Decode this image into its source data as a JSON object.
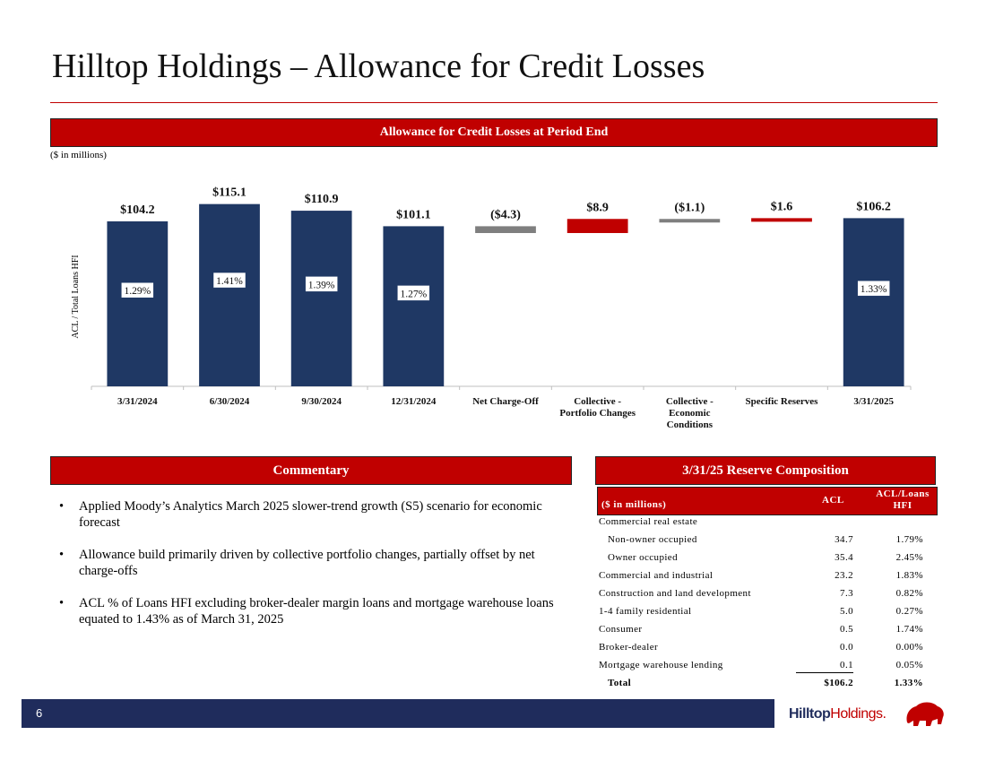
{
  "page": {
    "title": "Hilltop Holdings – Allowance for Credit Losses",
    "page_number": "6"
  },
  "chart_section": {
    "header": "Allowance for Credit Losses at Period End",
    "units_note": "($ in millions)"
  },
  "chart_data": {
    "type": "bar",
    "subtype": "waterfall",
    "ylabel": "ACL / Total Loans HFI",
    "categories": [
      "3/31/2024",
      "6/30/2024",
      "9/30/2024",
      "12/31/2024",
      "Net Charge-Off",
      "Collective - Portfolio Changes",
      "Collective - Economic Conditions",
      "Specific Reserves",
      "3/31/2025"
    ],
    "category_lines": [
      [
        "3/31/2024"
      ],
      [
        "6/30/2024"
      ],
      [
        "9/30/2024"
      ],
      [
        "12/31/2024"
      ],
      [
        "Net Charge-Off"
      ],
      [
        "Collective -",
        "Portfolio Changes"
      ],
      [
        "Collective -",
        "Economic",
        "Conditions"
      ],
      [
        "Specific Reserves"
      ],
      [
        "3/31/2025"
      ]
    ],
    "values": [
      104.2,
      115.1,
      110.9,
      101.1,
      -4.3,
      8.9,
      -1.1,
      1.6,
      106.2
    ],
    "value_labels": [
      "$104.2",
      "$115.1",
      "$110.9",
      "$101.1",
      "($4.3)",
      "$8.9",
      "($1.1)",
      "$1.6",
      "$106.2"
    ],
    "kinds": [
      "total",
      "total",
      "total",
      "total",
      "decrease",
      "increase",
      "decrease",
      "increase",
      "total"
    ],
    "ratio_labels": [
      "1.29%",
      "1.41%",
      "1.39%",
      "1.27%",
      "",
      "",
      "",
      "",
      "1.33%"
    ],
    "ylim": [
      0,
      120
    ],
    "colors": {
      "total": "#1f3864",
      "decrease": "#7f7f7f",
      "increase": "#c00000"
    }
  },
  "commentary": {
    "header": "Commentary",
    "bullets": [
      "Applied Moody’s Analytics March 2025 slower-trend growth (S5) scenario for economic forecast",
      "Allowance build primarily driven by collective portfolio changes, partially offset by net charge-offs",
      "ACL % of Loans HFI excluding broker-dealer margin loans and mortgage warehouse loans equated to 1.43% as of March 31, 2025"
    ],
    "bullet_glyph": "•"
  },
  "reserve": {
    "header": "3/31/25 Reserve Composition",
    "col_label": "($ in millions)",
    "col_acl": "ACL",
    "col_ratio_line1": "ACL/Loans",
    "col_ratio_line2": "HFI",
    "rows": [
      {
        "label": "Commercial real estate",
        "acl": "",
        "pct": ""
      },
      {
        "label": "Non-owner occupied",
        "acl": "34.7",
        "pct": "1.79%"
      },
      {
        "label": "Owner occupied",
        "acl": "35.4",
        "pct": "2.45%"
      },
      {
        "label": "Commercial and industrial",
        "acl": "23.2",
        "pct": "1.83%"
      },
      {
        "label": "Construction and land development",
        "acl": "7.3",
        "pct": "0.82%"
      },
      {
        "label": "1-4 family residential",
        "acl": "5.0",
        "pct": "0.27%"
      },
      {
        "label": "Consumer",
        "acl": "0.5",
        "pct": "1.74%"
      },
      {
        "label": "Broker-dealer",
        "acl": "0.0",
        "pct": "0.00%"
      },
      {
        "label": "Mortgage warehouse lending",
        "acl": "0.1",
        "pct": "0.05%"
      },
      {
        "label": "Total",
        "acl": "$106.2",
        "pct": "1.33%"
      }
    ]
  },
  "logo": {
    "part1": "Hilltop",
    "part2": "Holdings",
    "mark": "."
  }
}
